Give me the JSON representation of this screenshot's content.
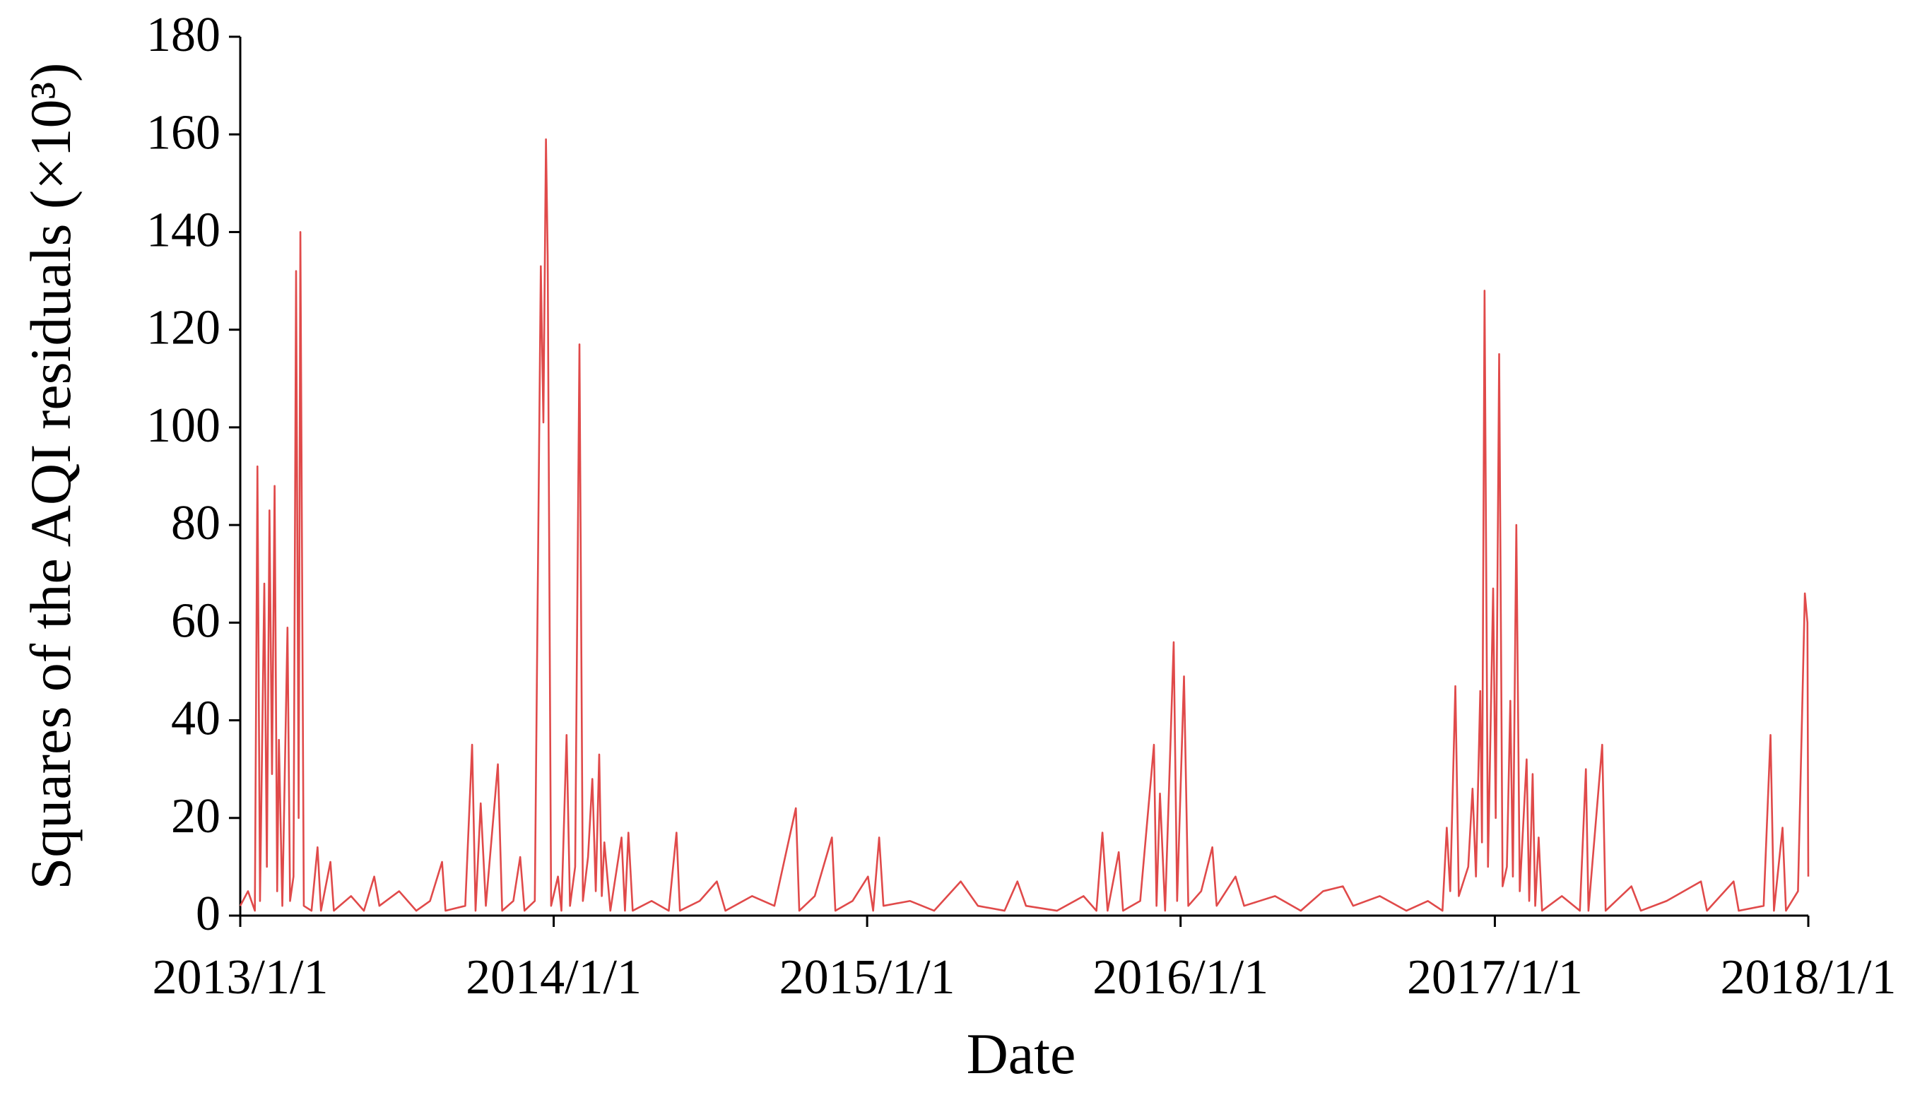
{
  "chart_data": {
    "type": "line",
    "y_label": "Squares of the AQI residuals (×10³)",
    "x_label": "Date",
    "color": "#e04a4a",
    "xlim": [
      "2013/1/1",
      "2018/1/1"
    ],
    "xticks": [
      "2013/1/1",
      "2014/1/1",
      "2015/1/1",
      "2016/1/1",
      "2017/1/1",
      "2018/1/1"
    ],
    "ylim": [
      0,
      180
    ],
    "yticks": [
      0,
      20,
      40,
      60,
      80,
      100,
      120,
      140,
      160,
      180
    ],
    "grid": false,
    "x": [
      "2013/1/1",
      "2013/1/10",
      "2013/1/18",
      "2013/1/21",
      "2013/1/24",
      "2013/1/29",
      "2013/2/1",
      "2013/2/4",
      "2013/2/7",
      "2013/2/10",
      "2013/2/13",
      "2013/2/15",
      "2013/2/19",
      "2013/2/25",
      "2013/2/28",
      "2013/3/4",
      "2013/3/7",
      "2013/3/10",
      "2013/3/12",
      "2013/3/16",
      "2013/3/25",
      "2013/4/1",
      "2013/4/5",
      "2013/4/16",
      "2013/4/20",
      "2013/5/10",
      "2013/5/25",
      "2013/6/6",
      "2013/6/12",
      "2013/7/5",
      "2013/7/25",
      "2013/8/10",
      "2013/8/24",
      "2013/8/28",
      "2013/9/20",
      "2013/9/28",
      "2013/10/2",
      "2013/10/8",
      "2013/10/14",
      "2013/10/28",
      "2013/11/2",
      "2013/11/15",
      "2013/11/23",
      "2013/11/28",
      "2013/12/10",
      "2013/12/17",
      "2013/12/20",
      "2013/12/23",
      "2013/12/25",
      "2013/12/29",
      "2014/1/6",
      "2014/1/10",
      "2014/1/16",
      "2014/1/20",
      "2014/1/26",
      "2014/1/31",
      "2014/2/4",
      "2014/2/10",
      "2014/2/15",
      "2014/2/19",
      "2014/2/23",
      "2014/2/26",
      "2014/3/1",
      "2014/3/8",
      "2014/3/21",
      "2014/3/25",
      "2014/3/29",
      "2014/4/3",
      "2014/4/25",
      "2014/5/15",
      "2014/5/24",
      "2014/5/28",
      "2014/6/20",
      "2014/7/10",
      "2014/7/20",
      "2014/8/20",
      "2014/9/15",
      "2014/10/10",
      "2014/10/14",
      "2014/11/1",
      "2014/11/21",
      "2014/11/25",
      "2014/12/15",
      "2015/1/2",
      "2015/1/8",
      "2015/1/15",
      "2015/1/20",
      "2015/2/20",
      "2015/3/20",
      "2015/4/20",
      "2015/5/10",
      "2015/6/10",
      "2015/6/25",
      "2015/7/5",
      "2015/8/10",
      "2015/9/10",
      "2015/9/25",
      "2015/10/2",
      "2015/10/8",
      "2015/10/21",
      "2015/10/26",
      "2015/11/15",
      "2015/12/1",
      "2015/12/4",
      "2015/12/8",
      "2015/12/14",
      "2015/12/24",
      "2015/12/28",
      "2016/1/5",
      "2016/1/10",
      "2016/1/25",
      "2016/2/7",
      "2016/2/12",
      "2016/3/5",
      "2016/3/15",
      "2016/4/20",
      "2016/5/20",
      "2016/6/15",
      "2016/7/8",
      "2016/7/20",
      "2016/8/20",
      "2016/9/20",
      "2016/10/15",
      "2016/11/1",
      "2016/11/6",
      "2016/11/10",
      "2016/11/16",
      "2016/11/20",
      "2016/12/1",
      "2016/12/6",
      "2016/12/10",
      "2016/12/15",
      "2016/12/17",
      "2016/12/20",
      "2016/12/24",
      "2016/12/30",
      "2017/1/2",
      "2017/1/6",
      "2017/1/10",
      "2017/1/15",
      "2017/1/19",
      "2017/1/22",
      "2017/1/26",
      "2017/1/30",
      "2017/2/7",
      "2017/2/10",
      "2017/2/14",
      "2017/2/17",
      "2017/2/21",
      "2017/2/25",
      "2017/3/20",
      "2017/4/10",
      "2017/4/17",
      "2017/4/20",
      "2017/5/6",
      "2017/5/10",
      "2017/6/9",
      "2017/6/20",
      "2017/7/20",
      "2017/8/29",
      "2017/9/5",
      "2017/10/6",
      "2017/10/12",
      "2017/11/10",
      "2017/11/18",
      "2017/11/22",
      "2017/12/2",
      "2017/12/6",
      "2017/12/20",
      "2017/12/28",
      "2017/12/31",
      "2018/1/1"
    ],
    "values": [
      2,
      5,
      1,
      92,
      3,
      68,
      10,
      83,
      29,
      88,
      5,
      36,
      2,
      59,
      3,
      8,
      132,
      20,
      140,
      2,
      1,
      14,
      1,
      11,
      1,
      4,
      1,
      8,
      2,
      5,
      1,
      3,
      11,
      1,
      2,
      35,
      1,
      23,
      2,
      31,
      1,
      3,
      12,
      1,
      3,
      133,
      101,
      159,
      135,
      2,
      8,
      1,
      37,
      2,
      10,
      117,
      3,
      12,
      28,
      5,
      33,
      4,
      15,
      1,
      16,
      1,
      17,
      1,
      3,
      1,
      17,
      1,
      3,
      7,
      1,
      4,
      2,
      22,
      1,
      4,
      16,
      1,
      3,
      8,
      1,
      16,
      2,
      3,
      1,
      7,
      2,
      1,
      7,
      2,
      1,
      4,
      1,
      17,
      1,
      13,
      1,
      3,
      35,
      2,
      25,
      1,
      56,
      3,
      49,
      2,
      5,
      14,
      2,
      8,
      2,
      4,
      1,
      5,
      6,
      2,
      4,
      1,
      3,
      1,
      18,
      5,
      47,
      4,
      10,
      26,
      8,
      46,
      15,
      128,
      10,
      67,
      20,
      115,
      6,
      10,
      44,
      8,
      80,
      5,
      32,
      3,
      29,
      2,
      16,
      1,
      4,
      1,
      30,
      1,
      35,
      1,
      6,
      1,
      3,
      7,
      1,
      7,
      1,
      2,
      37,
      1,
      18,
      1,
      5,
      66,
      60,
      8
    ]
  }
}
